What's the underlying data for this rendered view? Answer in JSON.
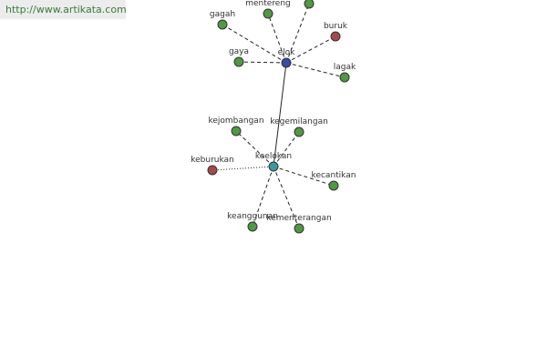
{
  "header": {
    "url": "http://www.artikata.com"
  },
  "nodes": [
    {
      "label": "elok",
      "color": "#3b4aa6"
    },
    {
      "label": "gagah",
      "color": "#4e9a40"
    },
    {
      "label": "mentereng",
      "color": "#4e9a40"
    },
    {
      "label": "buruk",
      "color": "#a84848"
    },
    {
      "label": "gaya",
      "color": "#4e9a40"
    },
    {
      "label": "lagak",
      "color": "#4e9a40"
    },
    {
      "label": "keelokan",
      "color": "#3a9aa2"
    },
    {
      "label": "kejombangan",
      "color": "#4e9a40"
    },
    {
      "label": "kegemilangan",
      "color": "#4e9a40"
    },
    {
      "label": "keburukan",
      "color": "#a84848"
    },
    {
      "label": "kecantikan",
      "color": "#4e9a40"
    },
    {
      "label": "keanggunan",
      "color": "#4e9a40"
    },
    {
      "label": "kementerangan",
      "color": "#4e9a40"
    }
  ]
}
